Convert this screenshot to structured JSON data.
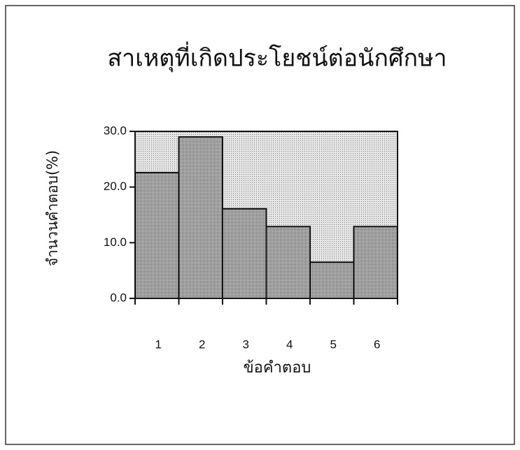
{
  "chart_data": {
    "type": "bar",
    "title": "สาเหตุที่เกิดประโยชน์ต่อนักศึกษา",
    "x_label": "ข้อคำตอบ",
    "y_label": "จำนวนคำตอบ(%)",
    "categories": [
      "1",
      "2",
      "3",
      "4",
      "5",
      "6"
    ],
    "values": [
      22.6,
      29.0,
      16.1,
      12.9,
      6.5,
      12.9
    ],
    "color": "#8a8a8a",
    "ylim": [
      0,
      30
    ],
    "yticks": [
      {
        "value": 0,
        "label": "0.0"
      },
      {
        "value": 10,
        "label": "10.0"
      },
      {
        "value": 20,
        "label": "20.0"
      },
      {
        "value": 30,
        "label": "30.0"
      }
    ]
  }
}
